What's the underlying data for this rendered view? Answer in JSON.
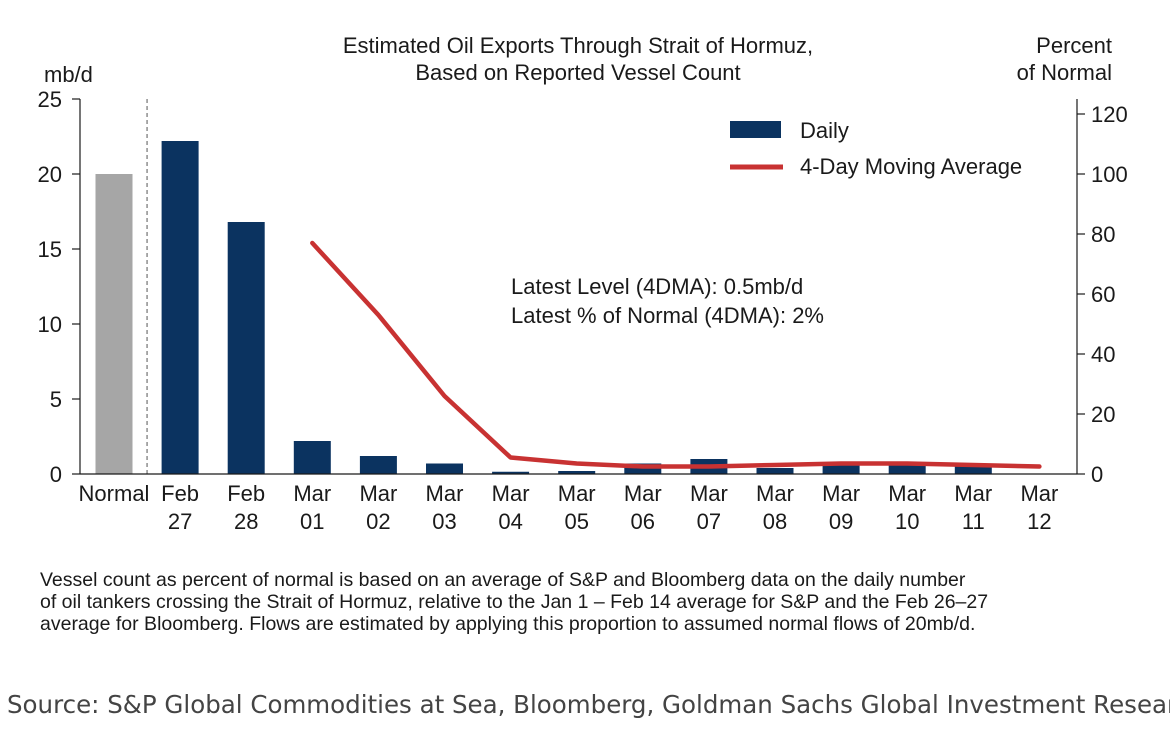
{
  "chart_data": {
    "type": "bar",
    "title_lines": [
      "Estimated Oil Exports Through Strait of Hormuz,",
      "Based on Reported Vessel Count"
    ],
    "ylabel_left": "mb/d",
    "ylabel_right_lines": [
      "Percent",
      "of Normal"
    ],
    "ylim_left": [
      0,
      25
    ],
    "yticks_left": [
      0,
      5,
      10,
      15,
      20,
      25
    ],
    "ylim_right": [
      0,
      125
    ],
    "yticks_right": [
      0,
      20,
      40,
      60,
      80,
      100,
      120
    ],
    "categories": [
      [
        "Normal"
      ],
      [
        "Feb",
        "27"
      ],
      [
        "Feb",
        "28"
      ],
      [
        "Mar",
        "01"
      ],
      [
        "Mar",
        "02"
      ],
      [
        "Mar",
        "03"
      ],
      [
        "Mar",
        "04"
      ],
      [
        "Mar",
        "05"
      ],
      [
        "Mar",
        "06"
      ],
      [
        "Mar",
        "07"
      ],
      [
        "Mar",
        "08"
      ],
      [
        "Mar",
        "09"
      ],
      [
        "Mar",
        "10"
      ],
      [
        "Mar",
        "11"
      ],
      [
        "Mar",
        "12"
      ]
    ],
    "series": [
      {
        "name": "Normal",
        "color": "#a6a6a6",
        "values": [
          20,
          null,
          null,
          null,
          null,
          null,
          null,
          null,
          null,
          null,
          null,
          null,
          null,
          null,
          null
        ]
      },
      {
        "name": "Daily",
        "color": "#0b3360",
        "values": [
          null,
          22.2,
          16.8,
          2.2,
          1.2,
          0.7,
          0.15,
          0.2,
          0.7,
          1.0,
          0.4,
          0.7,
          0.7,
          0.7,
          0.0
        ]
      },
      {
        "name": "4-Day Moving Average",
        "color": "#c83232",
        "axis": "right",
        "values": [
          null,
          null,
          null,
          77,
          53,
          26,
          5.5,
          3.5,
          2.5,
          2.5,
          3.0,
          3.5,
          3.5,
          3.0,
          2.5
        ]
      }
    ],
    "legend": [
      {
        "label": "Daily",
        "type": "bar",
        "color": "#0b3360"
      },
      {
        "label": "4-Day Moving Average",
        "type": "line",
        "color": "#c83232"
      }
    ],
    "legend_position": "top-right",
    "annotations": [
      "Latest Level (4DMA): 0.5mb/d",
      "Latest % of Normal (4DMA): 2%"
    ],
    "divider_after_category": "Normal",
    "grid": false
  },
  "note_lines": [
    "Vessel count as percent of normal is based on an average of S&P and Bloomberg data on the daily number",
    "of oil tankers crossing the Strait of Hormuz, relative to the Jan 1 – Feb 14 average for S&P and the Feb 26–27",
    "average for Bloomberg. Flows are estimated by applying this proportion to assumed normal flows of 20mb/d."
  ],
  "source": "Source: S&P Global Commodities at Sea, Bloomberg, Goldman Sachs Global Investment Research"
}
